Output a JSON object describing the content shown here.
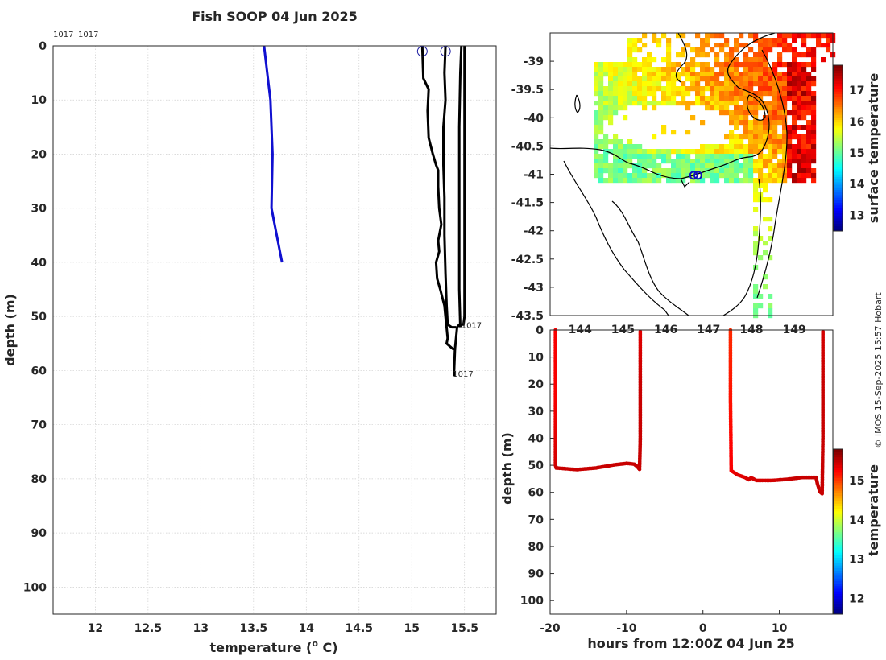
{
  "copyright": "© IMOS 15-Sep-2025 15:57 Hobart",
  "colors": {
    "profile_blue": "#1010d0",
    "profile_black": "#000000",
    "marker": "#1a1aa0"
  },
  "chart_data": [
    {
      "id": "profiles",
      "type": "line",
      "title": "Fish SOOP 04 Jun 2025",
      "xlabel": "temperature (o C)",
      "xlabel_main": "temperature (",
      "xlabel_sup": "o",
      "xlabel_tail": " C)",
      "ylabel": "depth (m)",
      "xlim": [
        11.6,
        15.8
      ],
      "ylim": [
        0,
        105
      ],
      "x_ticks": [
        12,
        12.5,
        13,
        13.5,
        14,
        14.5,
        15,
        15.5
      ],
      "x_tick_labels": [
        "12",
        "12.5",
        "13",
        "13.5",
        "14",
        "14.5",
        "15",
        "15.5"
      ],
      "y_ticks": [
        0,
        10,
        20,
        30,
        40,
        50,
        60,
        70,
        80,
        90,
        100
      ],
      "y_tick_labels": [
        "0",
        "10",
        "20",
        "30",
        "40",
        "50",
        "60",
        "70",
        "80",
        "90",
        "100"
      ],
      "top_labels": [
        "1017",
        "1017"
      ],
      "series": [
        {
          "name": "blue profile",
          "color": "#1010d0",
          "points": [
            [
              13.6,
              0
            ],
            [
              13.63,
              5
            ],
            [
              13.66,
              10
            ],
            [
              13.68,
              20
            ],
            [
              13.67,
              30
            ],
            [
              13.72,
              35
            ],
            [
              13.77,
              40
            ]
          ]
        },
        {
          "name": "profile A down",
          "color": "#000000",
          "points": [
            [
              15.1,
              0
            ],
            [
              15.11,
              6
            ],
            [
              15.16,
              8
            ],
            [
              15.15,
              12
            ],
            [
              15.16,
              17
            ],
            [
              15.2,
              20
            ],
            [
              15.23,
              22
            ],
            [
              15.25,
              23
            ],
            [
              15.25,
              26
            ],
            [
              15.26,
              30
            ],
            [
              15.28,
              33
            ],
            [
              15.25,
              36
            ],
            [
              15.26,
              38
            ],
            [
              15.23,
              40
            ],
            [
              15.24,
              43
            ],
            [
              15.27,
              45
            ],
            [
              15.31,
              48
            ],
            [
              15.32,
              50
            ],
            [
              15.33,
              52
            ],
            [
              15.34,
              54
            ],
            [
              15.33,
              55
            ],
            [
              15.39,
              56
            ],
            [
              15.42,
              56
            ]
          ]
        },
        {
          "name": "profile B down",
          "color": "#000000",
          "points": [
            [
              15.32,
              0
            ],
            [
              15.31,
              5
            ],
            [
              15.32,
              10
            ],
            [
              15.3,
              15
            ],
            [
              15.3,
              22
            ],
            [
              15.31,
              28
            ],
            [
              15.31,
              35
            ],
            [
              15.32,
              42
            ],
            [
              15.33,
              48
            ],
            [
              15.34,
              51.5
            ],
            [
              15.38,
              52
            ],
            [
              15.42,
              52
            ]
          ]
        },
        {
          "name": "profile B up",
          "color": "#000000",
          "points": [
            [
              15.46,
              52
            ],
            [
              15.45,
              45
            ],
            [
              15.45,
              35
            ],
            [
              15.45,
              25
            ],
            [
              15.45,
              15
            ],
            [
              15.46,
              5
            ],
            [
              15.47,
              0
            ]
          ]
        },
        {
          "name": "profile A up",
          "color": "#000000",
          "points": [
            [
              15.4,
              61
            ],
            [
              15.41,
              56
            ],
            [
              15.43,
              52
            ],
            [
              15.45,
              51.5
            ],
            [
              15.49,
              51.5
            ],
            [
              15.5,
              50
            ],
            [
              15.5,
              40
            ],
            [
              15.5,
              30
            ],
            [
              15.5,
              20
            ],
            [
              15.5,
              10
            ],
            [
              15.5,
              0
            ]
          ]
        }
      ],
      "start_markers": [
        [
          15.1,
          1
        ],
        [
          15.32,
          1
        ]
      ],
      "end_labels": [
        {
          "text": "1017",
          "x": 15.5,
          "y": 51.5
        },
        {
          "text": "1017",
          "x": 15.42,
          "y": 60.5
        }
      ]
    },
    {
      "id": "sst_map",
      "type": "heatmap",
      "xlim": [
        143.3,
        149.9
      ],
      "ylim": [
        -43.5,
        -38.5
      ],
      "x_ticks": [
        144,
        145,
        146,
        147,
        148,
        149
      ],
      "x_tick_labels": [
        "144",
        "145",
        "146",
        "147",
        "148",
        "149"
      ],
      "y_ticks": [
        -39,
        -39.5,
        -40,
        -40.5,
        -41,
        -41.5,
        -42,
        -42.5,
        -43,
        -43.5
      ],
      "y_tick_labels": [
        "-39",
        "-39.5",
        "-40",
        "-40.5",
        "-41",
        "-41.5",
        "-42",
        "-42.5",
        "-43",
        "-43.5"
      ],
      "colorbar_label": "surface temperature",
      "colorbar_range": [
        12.5,
        17.8
      ],
      "colorbar_ticks": [
        13,
        14,
        15,
        16,
        17
      ],
      "colorbar_tick_labels": [
        "13",
        "14",
        "15",
        "16",
        "17"
      ],
      "markers": [
        [
          146.65,
          -41.02
        ],
        [
          146.75,
          -41.02
        ]
      ]
    },
    {
      "id": "depth_time",
      "type": "scatter",
      "xlabel": "hours from 12:00Z 04 Jun 25",
      "ylabel": "depth (m)",
      "xlim": [
        -20,
        17
      ],
      "ylim": [
        0,
        105
      ],
      "x_ticks": [
        -20,
        -10,
        0,
        10
      ],
      "x_tick_labels": [
        "-20",
        "-10",
        "0",
        "10"
      ],
      "y_ticks": [
        0,
        10,
        20,
        30,
        40,
        50,
        60,
        70,
        80,
        90,
        100
      ],
      "y_tick_labels": [
        "0",
        "10",
        "20",
        "30",
        "40",
        "50",
        "60",
        "70",
        "80",
        "90",
        "100"
      ],
      "colorbar_label": "temperature",
      "colorbar_range": [
        11.6,
        15.8
      ],
      "colorbar_ticks": [
        12,
        13,
        14,
        15
      ],
      "colorbar_tick_labels": [
        "12",
        "13",
        "14",
        "15"
      ],
      "segments": [
        {
          "points": [
            [
              -19.3,
              0,
              15.3
            ],
            [
              -19.3,
              25,
              15.3
            ],
            [
              -19.3,
              50,
              15.45
            ],
            [
              -19.2,
              51,
              15.5
            ],
            [
              -16.5,
              51.6,
              15.5
            ],
            [
              -14,
              51,
              15.5
            ],
            [
              -11.5,
              49.8,
              15.5
            ],
            [
              -10,
              49.3,
              15.5
            ],
            [
              -9,
              49.6,
              15.5
            ],
            [
              -8.6,
              50.5,
              15.5
            ],
            [
              -8.3,
              51.5,
              15.5
            ],
            [
              -8.2,
              40,
              15.5
            ],
            [
              -8.2,
              20,
              15.5
            ],
            [
              -8.2,
              0,
              15.4
            ]
          ]
        },
        {
          "points": [
            [
              3.6,
              0,
              15.1
            ],
            [
              3.6,
              25,
              15.2
            ],
            [
              3.7,
              52,
              15.3
            ],
            [
              4.5,
              53.5,
              15.4
            ],
            [
              5.5,
              54.5,
              15.4
            ],
            [
              6,
              55.3,
              15.45
            ],
            [
              6.3,
              54.6,
              15.45
            ],
            [
              7,
              55.6,
              15.45
            ],
            [
              9,
              55.6,
              15.45
            ],
            [
              11,
              55.2,
              15.5
            ],
            [
              13,
              54.5,
              15.5
            ],
            [
              14.8,
              54.5,
              15.5
            ],
            [
              15,
              57,
              15.5
            ],
            [
              15.3,
              59.8,
              15.5
            ],
            [
              15.6,
              60.5,
              15.5
            ],
            [
              15.7,
              40,
              15.5
            ],
            [
              15.7,
              20,
              15.5
            ],
            [
              15.7,
              0,
              15.45
            ]
          ]
        }
      ]
    }
  ]
}
